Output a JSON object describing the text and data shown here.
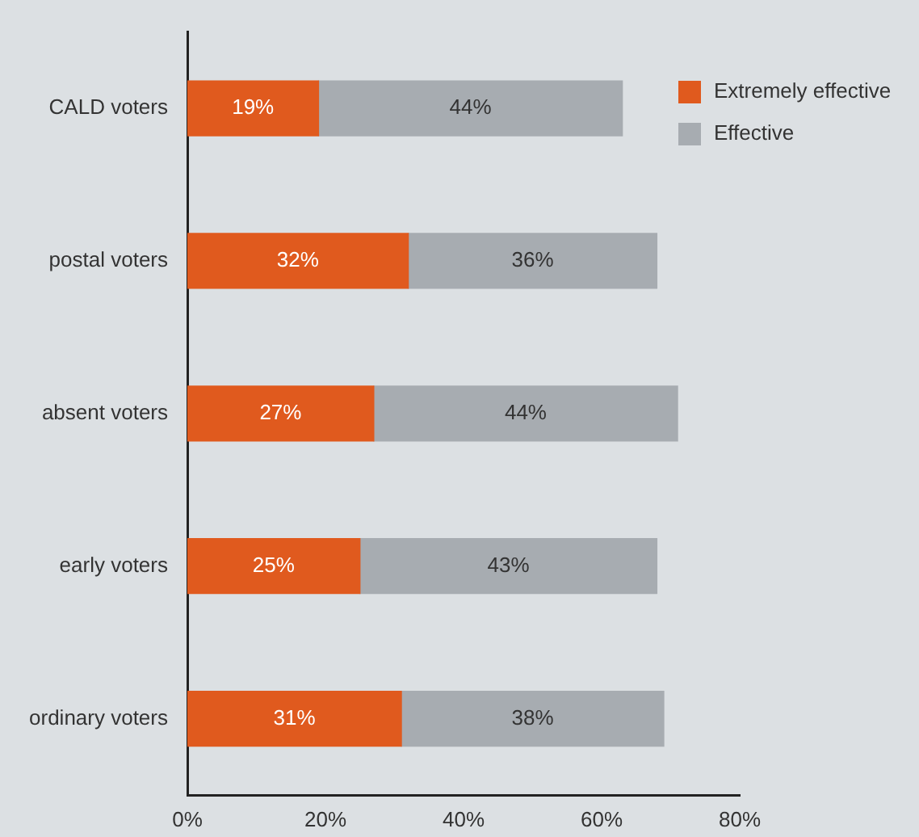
{
  "chart_data": {
    "type": "bar",
    "orientation": "horizontal",
    "stacked": true,
    "legend": "top right",
    "grid": false,
    "categories": [
      "CALD voters",
      "postal voters",
      "absent voters",
      "early voters",
      "ordinary voters"
    ],
    "series": [
      {
        "name": "Extremely effective",
        "color": "#e05a1e",
        "values": [
          19,
          32,
          27,
          25,
          31
        ],
        "value_labels": [
          "19%",
          "32%",
          "27%",
          "25%",
          "31%"
        ]
      },
      {
        "name": "Effective",
        "color": "#a7acb1",
        "values": [
          44,
          36,
          44,
          43,
          38
        ],
        "value_labels": [
          "44%",
          "36%",
          "44%",
          "43%",
          "38%"
        ]
      }
    ],
    "xlim": [
      0,
      80
    ],
    "xticks": [
      {
        "value": 0,
        "label": "0%"
      },
      {
        "value": 20,
        "label": "20%"
      },
      {
        "value": 40,
        "label": "40%"
      },
      {
        "value": 60,
        "label": "60%"
      },
      {
        "value": 80,
        "label": "80%"
      }
    ]
  }
}
